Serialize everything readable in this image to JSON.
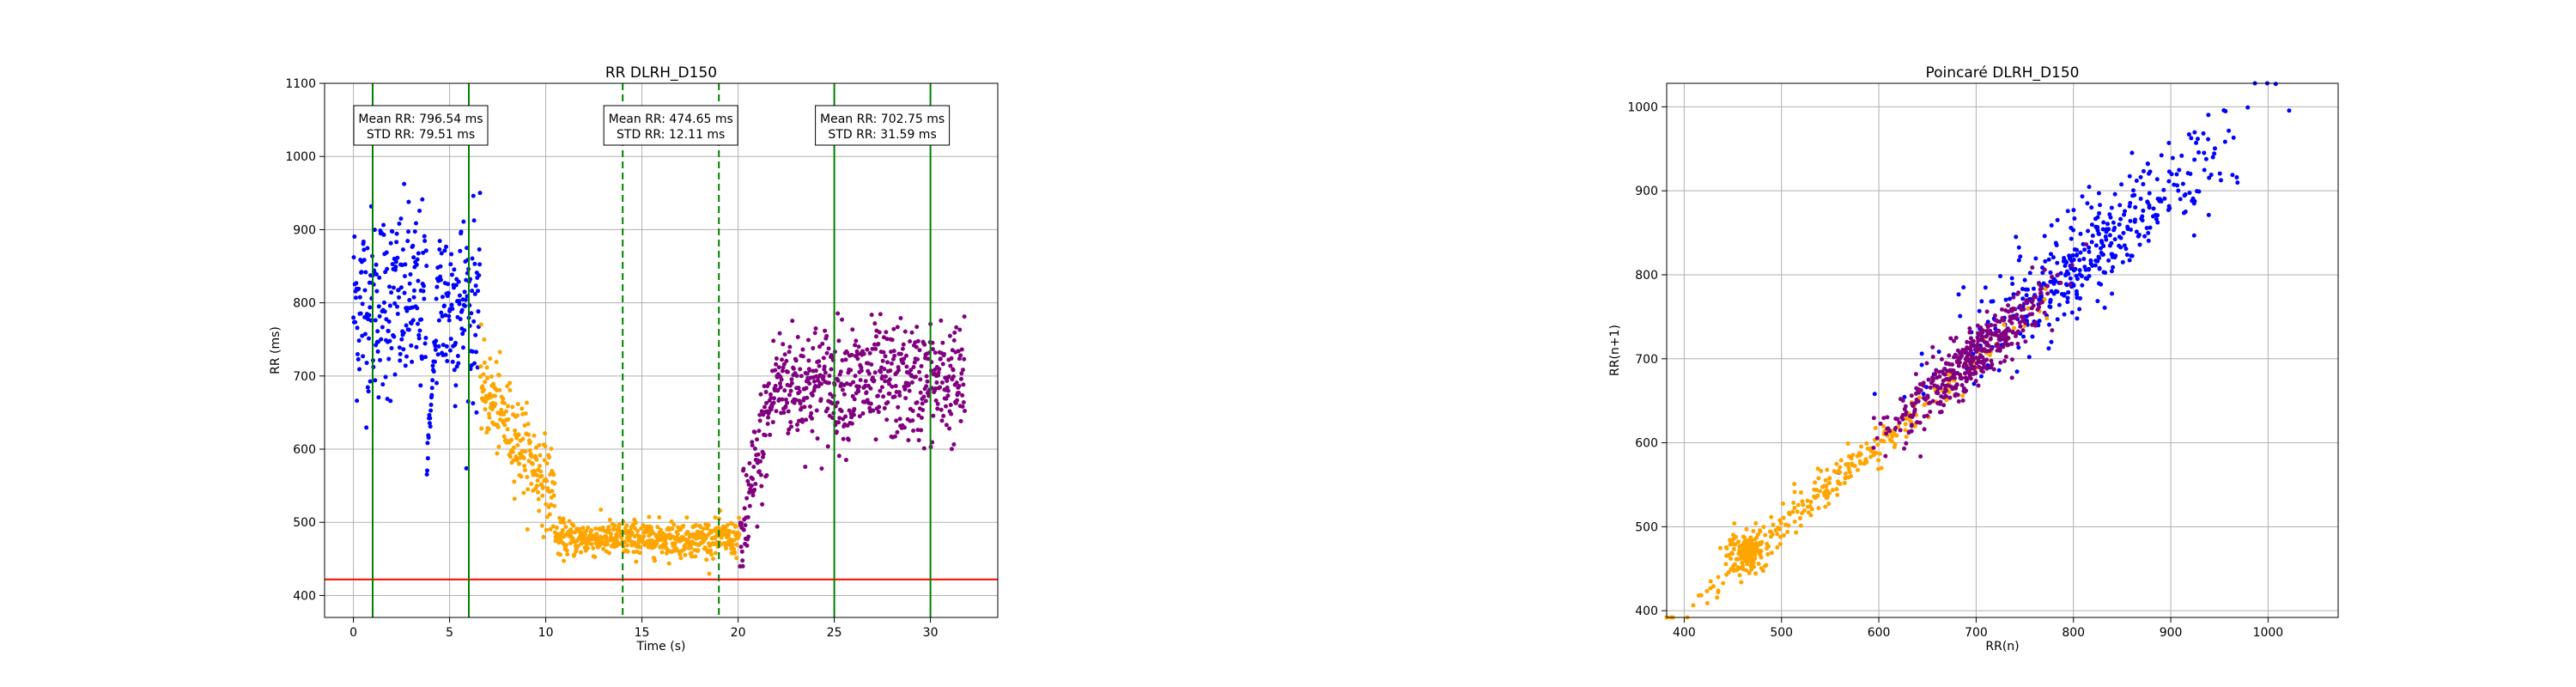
{
  "chart_data": [
    {
      "type": "scatter",
      "title": "RR DLRH_D150",
      "xlabel": "Time (s)",
      "ylabel": "RR (ms)",
      "xlim": [
        -1.5,
        33.5
      ],
      "ylim": [
        370,
        1100
      ],
      "xticks": [
        0,
        5,
        10,
        15,
        20,
        25,
        30
      ],
      "yticks": [
        400,
        500,
        600,
        700,
        800,
        900,
        1000,
        1100
      ],
      "grid": true,
      "series": [
        {
          "color": "#0000ff",
          "segments": [
            [
              0.0,
              6.6,
              800,
              65
            ]
          ],
          "dip": [
            3.8,
            4.3,
            580
          ]
        },
        {
          "color": "#ffa500",
          "segments": [
            [
              6.6,
              10.5,
              680,
              30
            ],
            [
              10.5,
              20.1,
              478,
              12
            ]
          ]
        },
        {
          "color": "#800080",
          "segments": [
            [
              20.1,
              22.0,
              650,
              40
            ],
            [
              22.0,
              31.8,
              690,
              40
            ]
          ]
        }
      ],
      "hlines": [
        {
          "y": 422,
          "color": "#ff0000"
        }
      ],
      "vlines": [
        {
          "x": 1,
          "color": "#008000",
          "style": "solid"
        },
        {
          "x": 6,
          "color": "#008000",
          "style": "solid"
        },
        {
          "x": 14,
          "color": "#008000",
          "style": "dashed"
        },
        {
          "x": 19,
          "color": "#008000",
          "style": "dashed"
        },
        {
          "x": 25,
          "color": "#008000",
          "style": "solid"
        },
        {
          "x": 30,
          "color": "#008000",
          "style": "solid"
        }
      ],
      "annotations": [
        {
          "x": 3.5,
          "line1": "Mean RR: 796.54 ms",
          "line2": "STD RR: 79.51 ms"
        },
        {
          "x": 16.5,
          "line1": "Mean RR: 474.65 ms",
          "line2": "STD RR: 12.11 ms"
        },
        {
          "x": 27.5,
          "line1": "Mean RR: 702.75 ms",
          "line2": "STD RR: 31.59 ms"
        }
      ]
    },
    {
      "type": "scatter",
      "title": "Poincaré DLRH_D150",
      "xlabel": "RR(n)",
      "ylabel": "RR(n+1)",
      "xlim": [
        382,
        1072
      ],
      "ylim": [
        392,
        1028
      ],
      "xticks": [
        400,
        500,
        600,
        700,
        800,
        900,
        1000
      ],
      "yticks": [
        400,
        500,
        600,
        700,
        800,
        900,
        1000
      ],
      "grid": true,
      "series": [
        {
          "color": "#0000ff",
          "center": [
            820,
            830
          ],
          "spread": 70,
          "width": 30
        },
        {
          "color": "#ffa500",
          "center": [
            560,
            560
          ],
          "spread": 80,
          "width": 12
        },
        {
          "color": "#800080",
          "center": [
            690,
            695
          ],
          "spread": 40,
          "width": 18
        }
      ]
    }
  ]
}
